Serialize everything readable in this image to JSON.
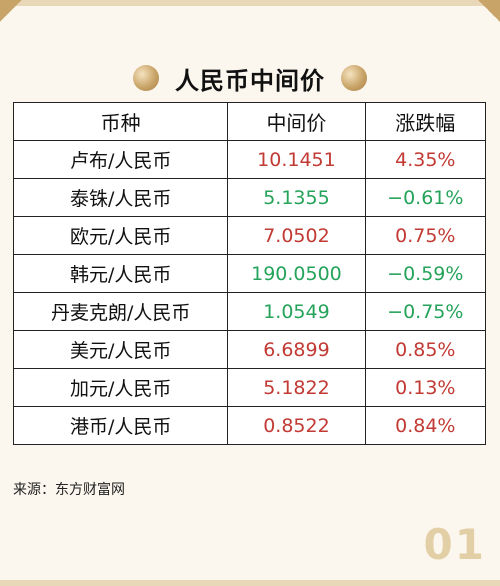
{
  "title": "人民币中间价",
  "table": {
    "headers": [
      "币种",
      "中间价",
      "涨跌幅"
    ],
    "rows": [
      {
        "currency": "卢布/人民币",
        "rate": "10.1451",
        "change": "4.35%",
        "direction": "up"
      },
      {
        "currency": "泰铢/人民币",
        "rate": "5.1355",
        "change": "−0.61%",
        "direction": "down"
      },
      {
        "currency": "欧元/人民币",
        "rate": "7.0502",
        "change": "0.75%",
        "direction": "up"
      },
      {
        "currency": "韩元/人民币",
        "rate": "190.0500",
        "change": "−0.59%",
        "direction": "down"
      },
      {
        "currency": "丹麦克朗/人民币",
        "rate": "1.0549",
        "change": "−0.75%",
        "direction": "down"
      },
      {
        "currency": "美元/人民币",
        "rate": "6.6899",
        "change": "0.85%",
        "direction": "up"
      },
      {
        "currency": "加元/人民币",
        "rate": "5.1822",
        "change": "0.13%",
        "direction": "up"
      },
      {
        "currency": "港币/人民币",
        "rate": "0.8522",
        "change": "0.84%",
        "direction": "up"
      }
    ]
  },
  "source": "来源：东方财富网",
  "page_number": "01",
  "colors": {
    "up": "#c23a34",
    "down": "#25a35a",
    "accent_gold": "#c9a468",
    "background": "#fbf6ee"
  }
}
